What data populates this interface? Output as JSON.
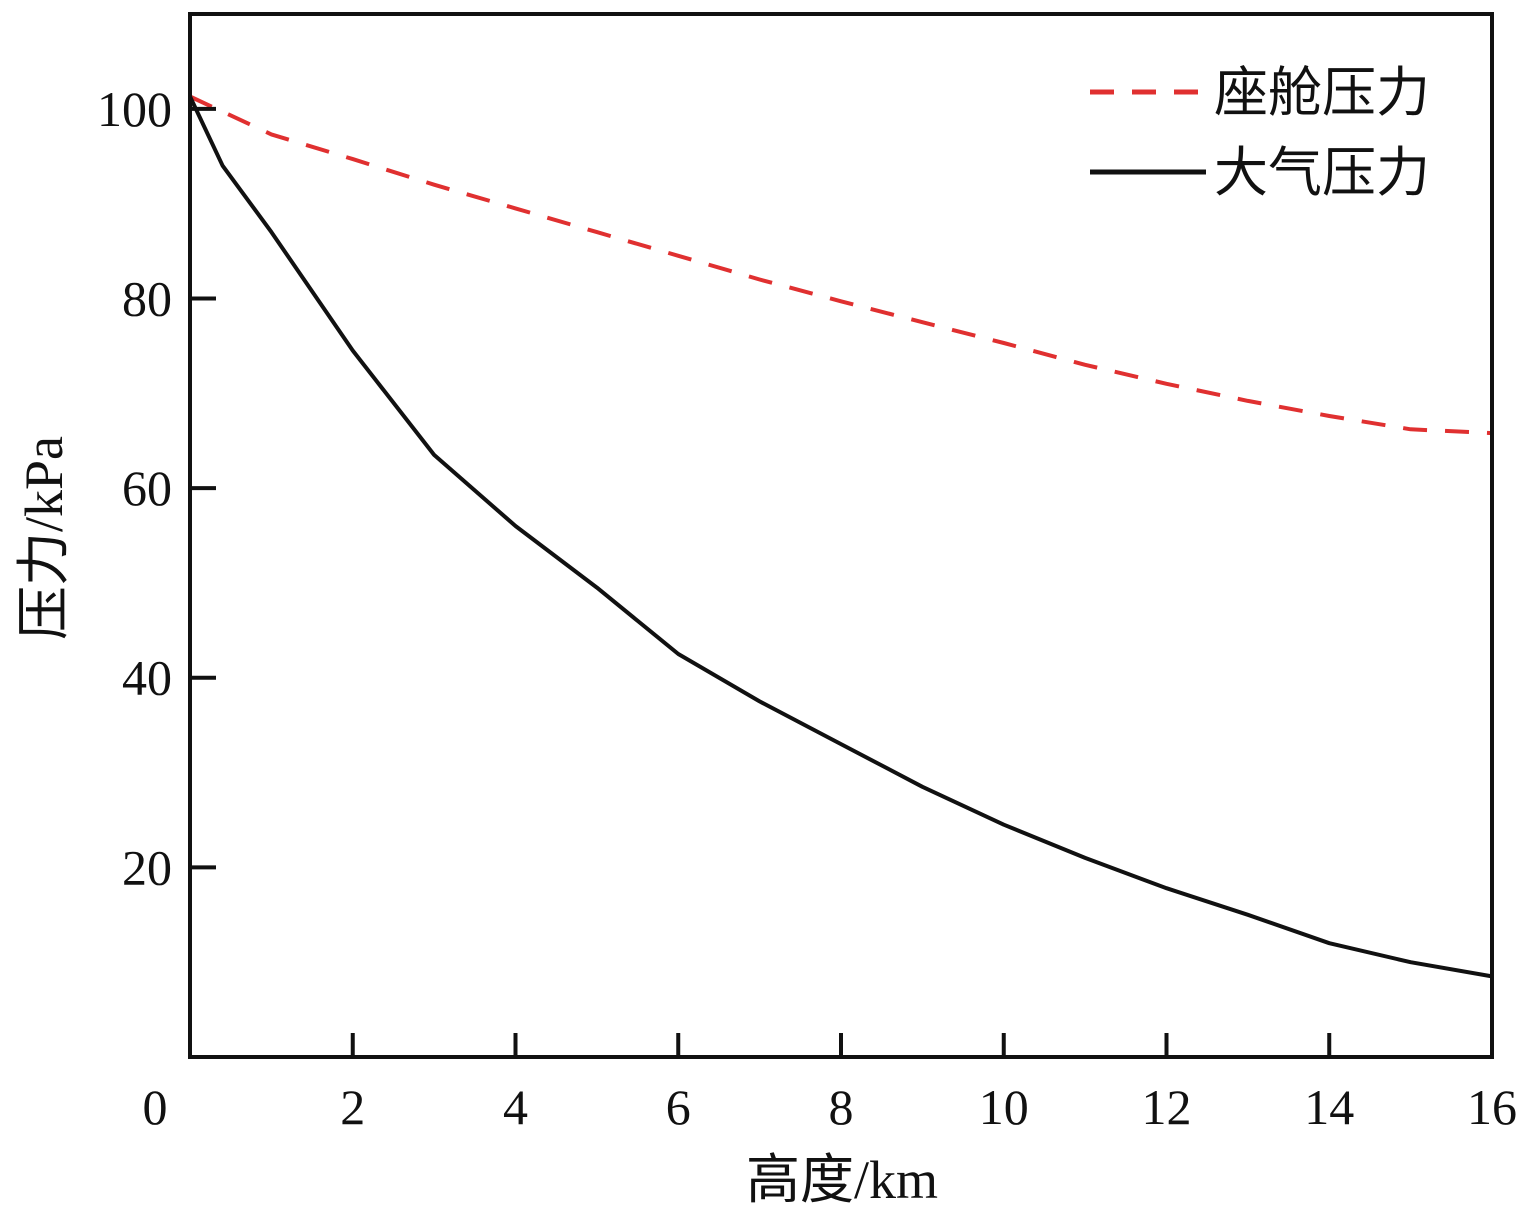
{
  "chart_data": {
    "type": "line",
    "xlabel": "高度/km",
    "ylabel": "压力/kPa",
    "xlim": [
      0,
      16
    ],
    "ylim": [
      0,
      110
    ],
    "xticks": [
      0,
      2,
      4,
      6,
      8,
      10,
      12,
      14,
      16
    ],
    "yticks": [
      20,
      40,
      60,
      80,
      100
    ],
    "grid": false,
    "legend_position": "top-right",
    "series": [
      {
        "name": "座舱压力",
        "style": "dashed",
        "color": "#e03030",
        "x": [
          0,
          1,
          2,
          3,
          4,
          5,
          6,
          7,
          8,
          9,
          10,
          11,
          12,
          13,
          14,
          15,
          16
        ],
        "y": [
          101.3,
          97.3,
          94.7,
          92.0,
          89.5,
          87.0,
          84.5,
          82.0,
          79.7,
          77.5,
          75.3,
          73.0,
          71.0,
          69.2,
          67.6,
          66.2,
          65.8
        ]
      },
      {
        "name": "大气压力",
        "style": "solid",
        "color": "#111111",
        "x": [
          0,
          0.4,
          1,
          2,
          3,
          4,
          5,
          6,
          7,
          8,
          9,
          10,
          11,
          12,
          13,
          14,
          15,
          16
        ],
        "y": [
          101.3,
          94.0,
          87.0,
          74.5,
          63.5,
          56.0,
          49.5,
          42.5,
          37.5,
          33.0,
          28.5,
          24.5,
          21.0,
          17.8,
          15.0,
          12.0,
          10.0,
          8.5
        ]
      }
    ]
  }
}
